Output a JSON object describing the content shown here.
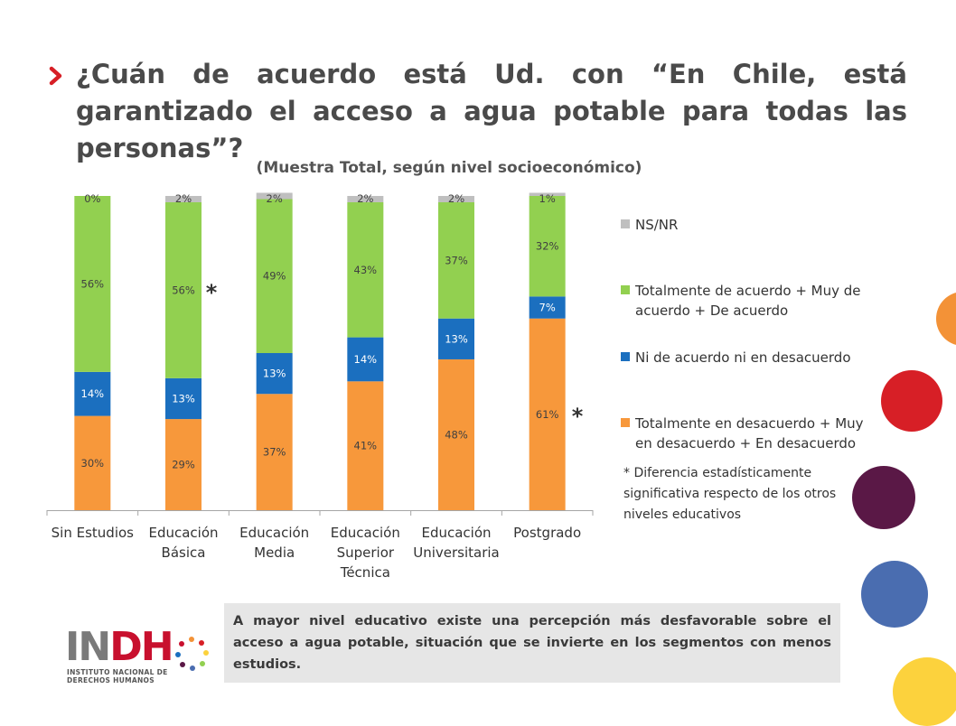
{
  "slide": {
    "title": "¿Cuán de acuerdo está Ud. con “En Chile, está garantizado el acceso a agua potable para todas las personas”?",
    "subtitle": "(Muestra Total, según nivel socioeconómico)",
    "footnote": "* Diferencia estadísticamente significativa respecto de los otros niveles educativos",
    "note": "A mayor nivel educativo existe una percepción más desfavorable sobre el acceso a agua potable, situación que se invierte en los segmentos con menos estudios.",
    "logo": {
      "word_a": "IN",
      "word_b": "DH",
      "line1": "INSTITUTO NACIONAL DE",
      "line2": "DERECHOS HUMANOS"
    },
    "decor_colors": [
      "#f39237",
      "#d71f26",
      "#5a1846",
      "#4a6db0",
      "#fcd23d"
    ]
  },
  "chart_data": {
    "type": "bar",
    "stacked": true,
    "title": "(Muestra Total, según nivel socioeconómico)",
    "categories": [
      [
        "Sin Estudios"
      ],
      [
        "Educación",
        "Básica"
      ],
      [
        "Educación",
        "Media"
      ],
      [
        "Educación",
        "Superior",
        "Técnica"
      ],
      [
        "Educación",
        "Universitaria"
      ],
      [
        "Postgrado"
      ]
    ],
    "series": [
      {
        "name": "Totalmente en desacuerdo + Muy en desacuerdo + En desacuerdo",
        "color": "#f7983b",
        "values": [
          30,
          29,
          37,
          41,
          48,
          61
        ],
        "labels": [
          "30%",
          "29%",
          "37%",
          "41%",
          "48%",
          "61%"
        ]
      },
      {
        "name": "Ni de acuerdo ni en desacuerdo",
        "color": "#1b6fbf",
        "values": [
          14,
          13,
          13,
          14,
          13,
          7
        ],
        "labels": [
          "14%",
          "13%",
          "13%",
          "14%",
          "13%",
          "7%"
        ]
      },
      {
        "name": "Totalmente de acuerdo + Muy de acuerdo + De acuerdo",
        "color": "#92d050",
        "values": [
          56,
          56,
          49,
          43,
          37,
          32
        ],
        "labels": [
          "56%",
          "56%",
          "49%",
          "43%",
          "37%",
          "32%"
        ]
      },
      {
        "name": "NS/NR",
        "color": "#bfbfbf",
        "values": [
          0,
          2,
          2,
          2,
          2,
          1
        ],
        "labels": [
          "0%",
          "2%",
          "2%",
          "2%",
          "2%",
          "1%"
        ]
      }
    ],
    "significance_markers": [
      {
        "category_index": 1,
        "text": "*"
      },
      {
        "category_index": 5,
        "text": "*"
      }
    ],
    "ylim": [
      0,
      100
    ],
    "grid": false,
    "legend": "right"
  }
}
